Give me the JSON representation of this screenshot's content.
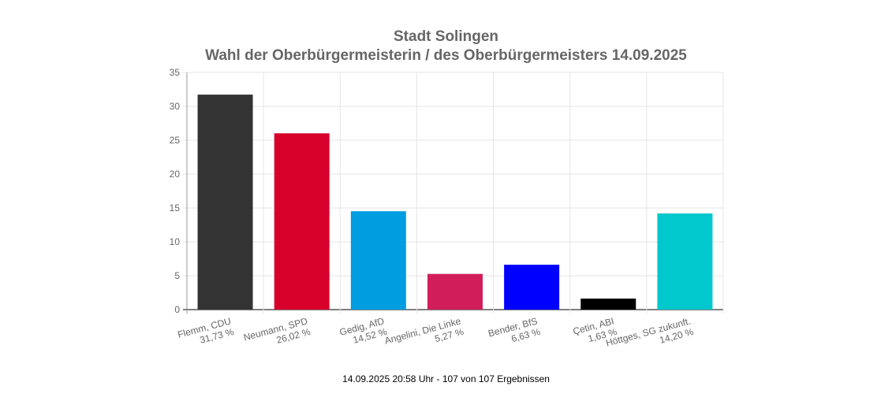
{
  "chart_data": {
    "type": "bar",
    "title": "Stadt Solingen",
    "subtitle": "Wahl der Oberbürgermeisterin / des Oberbürgermeisters 14.09.2025",
    "categories": [
      "Flemm, CDU",
      "Neumann, SPD",
      "Gedig, AfD",
      "Angelini, Die Linke",
      "Bender, BfS",
      "Çetin, ABI",
      "Höttges, SG zukunft."
    ],
    "value_labels": [
      "31,73 %",
      "26,02 %",
      "14,52 %",
      "5,27 %",
      "6,63 %",
      "1,63 %",
      "14,20 %"
    ],
    "values": [
      31.73,
      26.02,
      14.52,
      5.27,
      6.63,
      1.63,
      14.2
    ],
    "colors": [
      "#333333",
      "#d6002a",
      "#009ee0",
      "#d11e5a",
      "#0000ff",
      "#000000",
      "#00c8cc"
    ],
    "ylim": [
      0,
      35
    ],
    "yticks": [
      0,
      5,
      10,
      15,
      20,
      25,
      30,
      35
    ],
    "grid": true,
    "xlabel": "",
    "ylabel": ""
  },
  "footer": "14.09.2025 20:58 Uhr - 107 von 107 Ergebnissen"
}
